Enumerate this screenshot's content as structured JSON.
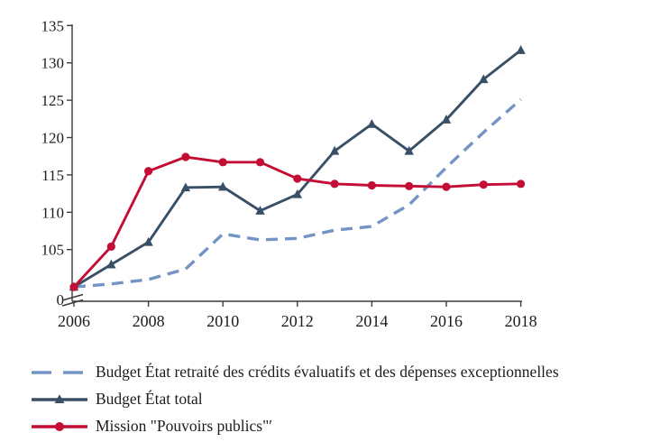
{
  "chart_data": {
    "type": "line",
    "title": "",
    "x": [
      2006,
      2007,
      2008,
      2009,
      2010,
      2011,
      2012,
      2013,
      2014,
      2015,
      2016,
      2017,
      2018
    ],
    "series": [
      {
        "name": "Budget État retraité des crédits évaluatifs et des dépenses exceptionnelles",
        "color": "#7394C4",
        "style": "dashed",
        "marker": "none",
        "values": [
          100,
          100.4,
          101,
          102.4,
          107.1,
          106.3,
          106.5,
          107.6,
          108.1,
          111,
          116,
          120.7,
          125.1
        ]
      },
      {
        "name": "Budget État total",
        "color": "#384F66",
        "style": "solid",
        "marker": "triangle",
        "values": [
          100,
          103,
          106,
          113.3,
          113.4,
          110.2,
          112.4,
          118.2,
          121.8,
          118.2,
          122.4,
          127.8,
          131.7
        ]
      },
      {
        "name": "Mission \"Pouvoirs publics\"′",
        "color": "#C30D35",
        "style": "solid",
        "marker": "circle",
        "values": [
          100,
          105.4,
          115.5,
          117.4,
          116.7,
          116.7,
          114.5,
          113.8,
          113.6,
          113.5,
          113.4,
          113.7,
          113.8
        ]
      }
    ],
    "x_axis": {
      "ticks": [
        2006,
        2008,
        2010,
        2012,
        2014,
        2016,
        2018
      ]
    },
    "y_axis": {
      "ticks": [
        105,
        110,
        115,
        120,
        125,
        130,
        135
      ],
      "zero_label": "0",
      "broken": true,
      "ylim_top": 135
    },
    "grid": false,
    "legend_position": "bottom-left"
  }
}
